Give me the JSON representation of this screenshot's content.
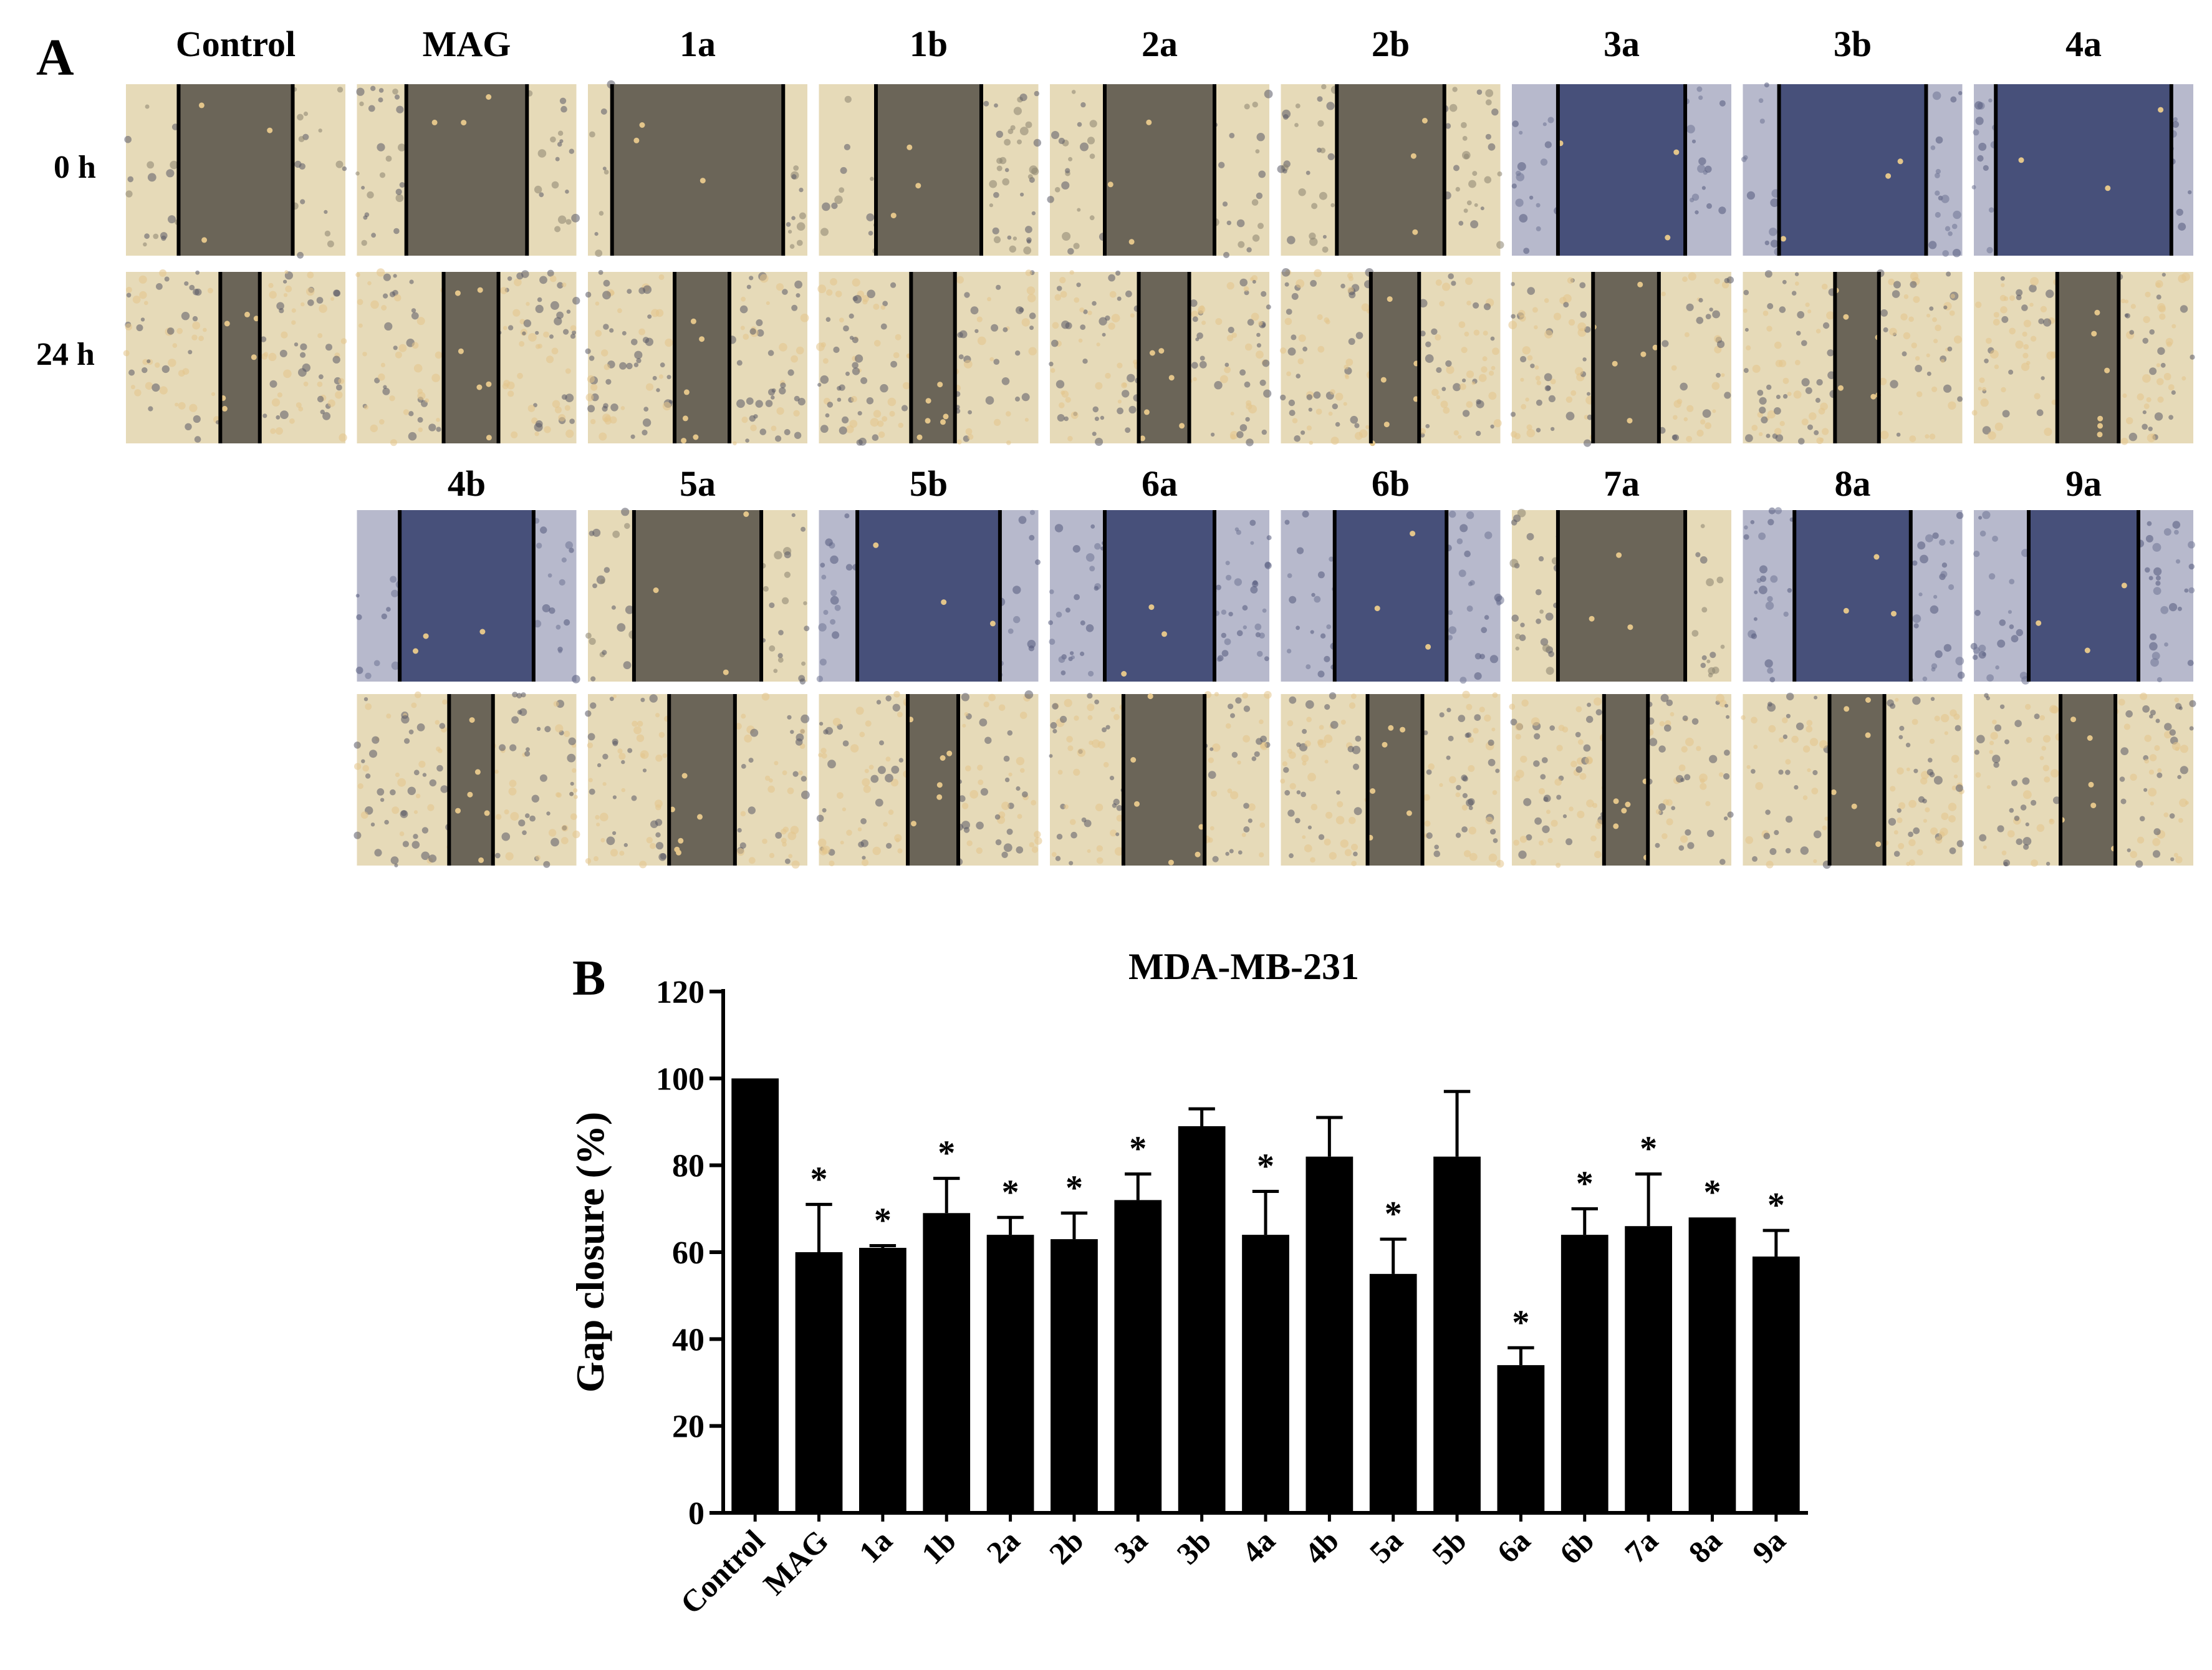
{
  "panel_a": {
    "label": "A",
    "row_labels": [
      "0 h",
      "24 h"
    ],
    "top_groups": [
      "Control",
      "MAG",
      "1a",
      "1b",
      "2a",
      "2b",
      "3a",
      "3b",
      "4a"
    ],
    "bottom_groups": [
      "4b",
      "5a",
      "5b",
      "6a",
      "6b",
      "7a",
      "8a",
      "9a"
    ],
    "tint": {
      "warm_light": "#e6dab8",
      "warm_gap": "#6b6558",
      "blue_light": "#b7b9cc",
      "blue_gap": "#47507a",
      "cell": "#e3c58a",
      "cell_dark": "#5a5a66",
      "line": "#000000"
    },
    "blue_zero_h": [
      "3a",
      "3b",
      "4a",
      "4b",
      "5b",
      "6a",
      "6b",
      "8a",
      "9a"
    ],
    "gap_fraction_0h": {
      "Control": 0.52,
      "MAG": 0.55,
      "1a": 0.78,
      "1b": 0.48,
      "2a": 0.5,
      "2b": 0.49,
      "3a": 0.58,
      "3b": 0.67,
      "4a": 0.8,
      "4b": 0.61,
      "5a": 0.58,
      "5b": 0.65,
      "6a": 0.5,
      "6b": 0.51,
      "7a": 0.58,
      "8a": 0.53,
      "9a": 0.5
    },
    "gap_fraction_24h": {
      "Control": 0.18,
      "MAG": 0.25,
      "1a": 0.25,
      "1b": 0.2,
      "2a": 0.23,
      "2b": 0.22,
      "3a": 0.3,
      "3b": 0.2,
      "4a": 0.28,
      "4b": 0.2,
      "5a": 0.3,
      "5b": 0.23,
      "6a": 0.37,
      "6b": 0.25,
      "7a": 0.2,
      "8a": 0.25,
      "9a": 0.25
    }
  },
  "chart_data": {
    "type": "bar",
    "panel_label": "B",
    "title": "MDA-MB-231",
    "xlabel": "",
    "ylabel": "Gap closure (%)",
    "ylim": [
      0,
      120
    ],
    "yticks": [
      0,
      20,
      40,
      60,
      80,
      100,
      120
    ],
    "categories": [
      "Control",
      "MAG",
      "1a",
      "1b",
      "2a",
      "2b",
      "3a",
      "3b",
      "4a",
      "4b",
      "5a",
      "5b",
      "6a",
      "6b",
      "7a",
      "8a",
      "9a"
    ],
    "values": [
      100,
      60,
      61,
      69,
      64,
      63,
      72,
      89,
      64,
      82,
      55,
      82,
      34,
      64,
      66,
      68,
      59
    ],
    "errors": [
      0,
      11,
      0.5,
      8,
      4,
      6,
      6,
      4,
      10,
      9,
      8,
      15,
      4,
      6,
      12,
      0,
      6
    ],
    "significance": [
      "",
      "*",
      "*",
      "*",
      "*",
      "*",
      "*",
      "",
      "*",
      "",
      "*",
      "",
      "*",
      "*",
      "*",
      "*",
      "*"
    ],
    "bar_color": "#000000"
  }
}
